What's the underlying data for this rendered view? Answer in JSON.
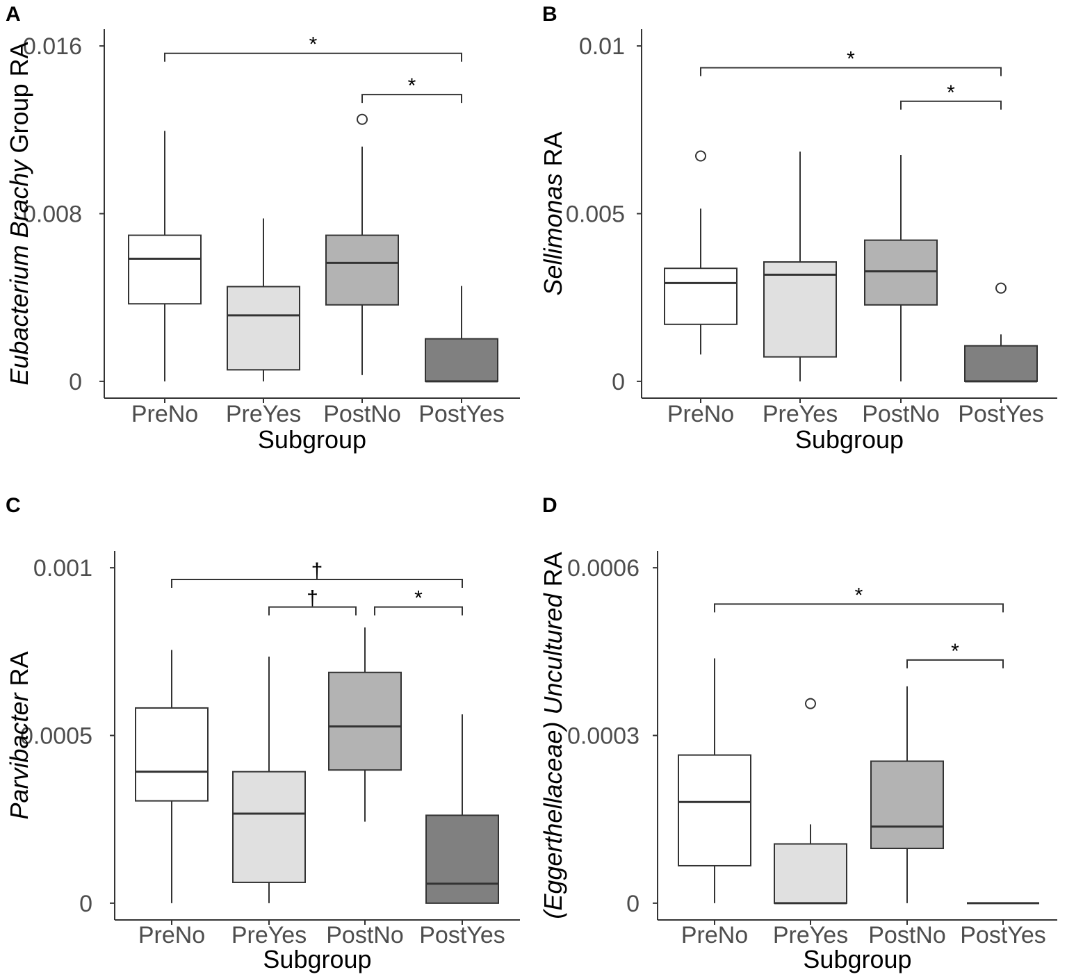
{
  "chart_data": [
    {
      "panel": "A",
      "type": "boxplot",
      "xlabel": "Subgroup",
      "ylabel_parts": [
        {
          "text": "Eubacterium Brachy",
          "italic": true
        },
        {
          "text": " Group RA",
          "italic": false
        }
      ],
      "ylim": [
        -0.0008,
        0.0168
      ],
      "yticks": [
        0,
        0.008,
        0.016
      ],
      "ytick_labels": [
        "0",
        "0.008",
        "0.016"
      ],
      "categories": [
        "PreNo",
        "PreYes",
        "PostNo",
        "PostYes"
      ],
      "fills": [
        "#ffffff",
        "#e0e0e0",
        "#b3b3b3",
        "#808080"
      ],
      "boxes": [
        {
          "min": 0,
          "q1": 0.0037,
          "median": 0.00585,
          "q3": 0.00697,
          "max": 0.01195,
          "outliers": []
        },
        {
          "min": 0,
          "q1": 0.00055,
          "median": 0.00315,
          "q3": 0.00452,
          "max": 0.00777,
          "outliers": []
        },
        {
          "min": 0.0003,
          "q1": 0.00365,
          "median": 0.00565,
          "q3": 0.00697,
          "max": 0.0112,
          "outliers": [
            0.0125
          ]
        },
        {
          "min": 0,
          "q1": 0,
          "median": 0,
          "q3": 0.00203,
          "max": 0.00455,
          "outliers": []
        }
      ],
      "brackets": [
        {
          "from": 0,
          "to": 3,
          "y": 0.01565,
          "label": "*"
        },
        {
          "from": 2,
          "to": 3,
          "y": 0.01368,
          "label": "*"
        }
      ]
    },
    {
      "panel": "B",
      "type": "boxplot",
      "xlabel": "Subgroup",
      "ylabel_parts": [
        {
          "text": "Sellimonas",
          "italic": true
        },
        {
          "text": " RA",
          "italic": false
        }
      ],
      "ylim": [
        -0.0005,
        0.0105
      ],
      "yticks": [
        0,
        0.005,
        0.01
      ],
      "ytick_labels": [
        "0",
        "0.005",
        "0.01"
      ],
      "categories": [
        "PreNo",
        "PreYes",
        "PostNo",
        "PostYes"
      ],
      "fills": [
        "#ffffff",
        "#e0e0e0",
        "#b3b3b3",
        "#808080"
      ],
      "boxes": [
        {
          "min": 0.0008,
          "q1": 0.0017,
          "median": 0.00293,
          "q3": 0.00337,
          "max": 0.00515,
          "outliers": [
            0.00672
          ]
        },
        {
          "min": 0,
          "q1": 0.00073,
          "median": 0.00318,
          "q3": 0.00356,
          "max": 0.00685,
          "outliers": []
        },
        {
          "min": 0,
          "q1": 0.00228,
          "median": 0.00328,
          "q3": 0.00421,
          "max": 0.00675,
          "outliers": []
        },
        {
          "min": 0,
          "q1": 0,
          "median": 0,
          "q3": 0.00106,
          "max": 0.0014,
          "outliers": [
            0.00278
          ]
        }
      ],
      "brackets": [
        {
          "from": 0,
          "to": 3,
          "y": 0.00935,
          "label": "*"
        },
        {
          "from": 2,
          "to": 3,
          "y": 0.00835,
          "label": "*"
        }
      ]
    },
    {
      "panel": "C",
      "type": "boxplot",
      "xlabel": "Subgroup",
      "ylabel_parts": [
        {
          "text": "Parvibacter",
          "italic": true
        },
        {
          "text": " RA",
          "italic": false
        }
      ],
      "ylim": [
        -5e-05,
        0.00105
      ],
      "yticks": [
        0,
        0.0005,
        0.001
      ],
      "ytick_labels": [
        "0",
        "0.0005",
        "0.001"
      ],
      "categories": [
        "PreNo",
        "PreYes",
        "PostNo",
        "PostYes"
      ],
      "fills": [
        "#ffffff",
        "#e0e0e0",
        "#b3b3b3",
        "#808080"
      ],
      "boxes": [
        {
          "min": 0,
          "q1": 0.000305,
          "median": 0.000392,
          "q3": 0.000582,
          "max": 0.000755,
          "outliers": []
        },
        {
          "min": 0,
          "q1": 6.2e-05,
          "median": 0.000267,
          "q3": 0.000392,
          "max": 0.000735,
          "outliers": []
        },
        {
          "min": 0.000243,
          "q1": 0.000397,
          "median": 0.000527,
          "q3": 0.000688,
          "max": 0.000822,
          "outliers": []
        },
        {
          "min": 0,
          "q1": 0,
          "median": 5.8e-05,
          "q3": 0.000262,
          "max": 0.000563,
          "outliers": []
        }
      ],
      "brackets": [
        {
          "from": 0,
          "to": 3,
          "y": 0.000965,
          "label": "†"
        },
        {
          "from": 1,
          "to": 2,
          "y": 0.000883,
          "label": "†"
        },
        {
          "from": 2,
          "to": 3,
          "y": 0.000883,
          "label": "*"
        }
      ]
    },
    {
      "panel": "D",
      "type": "boxplot",
      "xlabel": "Subgroup",
      "ylabel_parts": [
        {
          "text": "(Eggerthellaceae) Uncultured",
          "italic": true
        },
        {
          "text": " RA",
          "italic": false
        }
      ],
      "ylim": [
        -3e-05,
        0.00063
      ],
      "yticks": [
        0,
        0.0003,
        0.0006
      ],
      "ytick_labels": [
        "0",
        "0.0003",
        "0.0006"
      ],
      "categories": [
        "PreNo",
        "PreYes",
        "PostNo",
        "PostYes"
      ],
      "fills": [
        "#ffffff",
        "#e0e0e0",
        "#b3b3b3",
        "#808080"
      ],
      "boxes": [
        {
          "min": 0,
          "q1": 6.7e-05,
          "median": 0.000181,
          "q3": 0.000265,
          "max": 0.000438,
          "outliers": []
        },
        {
          "min": 0,
          "q1": 0,
          "median": 0,
          "q3": 0.000106,
          "max": 0.000141,
          "outliers": [
            0.000357
          ]
        },
        {
          "min": 0,
          "q1": 9.8e-05,
          "median": 0.000137,
          "q3": 0.000254,
          "max": 0.000388,
          "outliers": []
        },
        {
          "min": 0,
          "q1": 0,
          "median": 0,
          "q3": 0,
          "max": 0,
          "outliers": []
        }
      ],
      "brackets": [
        {
          "from": 0,
          "to": 3,
          "y": 0.000535,
          "label": "*"
        },
        {
          "from": 2,
          "to": 3,
          "y": 0.000435,
          "label": "*"
        }
      ]
    }
  ]
}
